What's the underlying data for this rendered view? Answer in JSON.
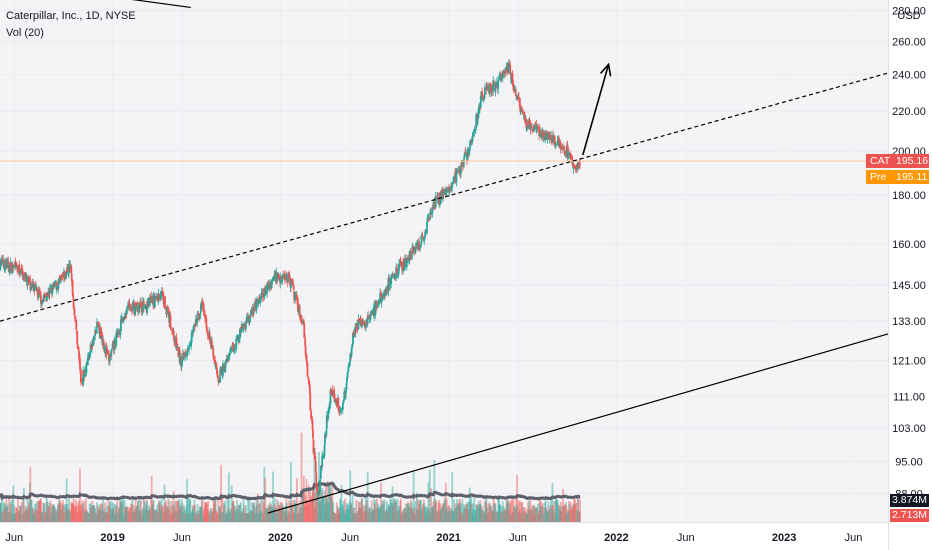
{
  "legend": {
    "title": "Caterpillar, Inc., 1D, NYSE",
    "volume": "Vol (20)"
  },
  "axis": {
    "currency": "USD",
    "y_ticks": [
      "280.00",
      "260.00",
      "240.00",
      "220.00",
      "200.00",
      "180.00",
      "160.00",
      "145.00",
      "133.00",
      "121.00",
      "111.00",
      "103.00",
      "95.00",
      "88.00"
    ],
    "x_ticks": [
      "Jun",
      "2019",
      "Jun",
      "2020",
      "Jun",
      "2021",
      "Jun",
      "2022",
      "Jun",
      "2023",
      "Jun"
    ],
    "bold_x_ticks": [
      "2019",
      "2020",
      "2021",
      "2022",
      "2023"
    ]
  },
  "tags": {
    "last": {
      "symbol": "CAT",
      "value": "195.16",
      "color": "#ef5350"
    },
    "pre": {
      "symbol": "Pre",
      "value": "195.11",
      "color": "#ff9800"
    },
    "vol_ma": {
      "value": "3.874M",
      "color": "#131722"
    },
    "vol": {
      "value": "2.713M",
      "color": "#ef5350"
    }
  },
  "colors": {
    "up": "#26a69a",
    "down": "#ef5350",
    "shade": "#f4f4f6",
    "volume_ma": "#5d606b"
  },
  "chart_data": {
    "type": "candlestick",
    "symbol": "CAT",
    "scale": "log",
    "y_range": [
      84,
      285
    ],
    "x_range": [
      "2018-05-01",
      "2023-08-15"
    ],
    "price_path": [
      [
        "2018-05-01",
        153
      ],
      [
        "2018-06-15",
        150
      ],
      [
        "2018-08-01",
        140
      ],
      [
        "2018-09-15",
        147
      ],
      [
        "2018-10-01",
        152
      ],
      [
        "2018-10-25",
        115
      ],
      [
        "2018-12-01",
        132
      ],
      [
        "2018-12-24",
        121
      ],
      [
        "2019-02-01",
        137
      ],
      [
        "2019-03-15",
        138
      ],
      [
        "2019-04-20",
        142
      ],
      [
        "2019-05-31",
        120
      ],
      [
        "2019-07-15",
        138
      ],
      [
        "2019-08-20",
        116
      ],
      [
        "2019-10-15",
        132
      ],
      [
        "2019-12-20",
        148
      ],
      [
        "2020-01-20",
        148
      ],
      [
        "2020-02-21",
        132
      ],
      [
        "2020-03-23",
        87
      ],
      [
        "2020-04-20",
        113
      ],
      [
        "2020-05-15",
        107
      ],
      [
        "2020-06-10",
        131
      ],
      [
        "2020-07-15",
        134
      ],
      [
        "2020-09-01",
        148
      ],
      [
        "2020-11-01",
        160
      ],
      [
        "2020-12-01",
        176
      ],
      [
        "2021-01-15",
        187
      ],
      [
        "2021-02-15",
        200
      ],
      [
        "2021-03-15",
        228
      ],
      [
        "2021-04-20",
        236
      ],
      [
        "2021-05-10",
        246
      ],
      [
        "2021-06-15",
        215
      ],
      [
        "2021-07-15",
        210
      ],
      [
        "2021-08-15",
        206
      ],
      [
        "2021-09-15",
        200
      ],
      [
        "2021-10-04",
        190
      ],
      [
        "2021-10-15",
        195.16
      ]
    ],
    "last_price": 195.16,
    "premarket_price": 195.11,
    "volume_ma_last": "3.874M",
    "volume_last": "2.713M",
    "annotations": [
      {
        "type": "channel-line",
        "style": "solid",
        "points": [
          [
            "2018-05-01",
            300
          ],
          [
            "2019-06-20",
            282
          ]
        ]
      },
      {
        "type": "channel-line",
        "style": "dashed",
        "points": [
          [
            "2018-05-01",
            133
          ],
          [
            "2023-08-15",
            241
          ]
        ]
      },
      {
        "type": "channel-line",
        "style": "solid",
        "points": [
          [
            "2019-12-05",
            84
          ],
          [
            "2023-08-15",
            129
          ]
        ]
      },
      {
        "type": "arrow",
        "points": [
          [
            "2021-10-20",
            198
          ],
          [
            "2021-12-15",
            246
          ]
        ]
      }
    ]
  }
}
